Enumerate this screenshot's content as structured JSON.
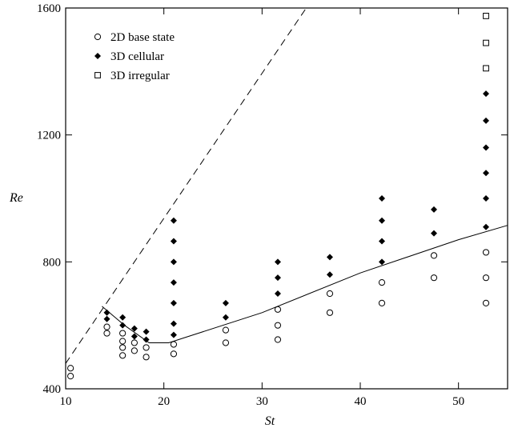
{
  "chart_data": {
    "type": "scatter",
    "xlabel": "St",
    "ylabel": "Re",
    "xlim": [
      10,
      55
    ],
    "ylim": [
      400,
      1600
    ],
    "xticks": [
      10,
      20,
      30,
      40,
      50
    ],
    "yticks": [
      400,
      800,
      1200,
      1600
    ],
    "grid": false,
    "legend_position": "top-left",
    "series": [
      {
        "name": "2D base state",
        "marker": "open-circle",
        "color": "#000000",
        "points": [
          [
            10.5,
            440
          ],
          [
            10.5,
            465
          ],
          [
            14.2,
            575
          ],
          [
            14.2,
            595
          ],
          [
            15.8,
            505
          ],
          [
            15.8,
            530
          ],
          [
            15.8,
            550
          ],
          [
            15.8,
            575
          ],
          [
            17.0,
            520
          ],
          [
            17.0,
            545
          ],
          [
            18.2,
            500
          ],
          [
            18.2,
            530
          ],
          [
            21.0,
            510
          ],
          [
            21.0,
            540
          ],
          [
            26.3,
            545
          ],
          [
            26.3,
            585
          ],
          [
            31.6,
            555
          ],
          [
            31.6,
            600
          ],
          [
            31.6,
            650
          ],
          [
            36.9,
            640
          ],
          [
            36.9,
            700
          ],
          [
            42.2,
            670
          ],
          [
            42.2,
            735
          ],
          [
            47.5,
            750
          ],
          [
            47.5,
            820
          ],
          [
            52.8,
            670
          ],
          [
            52.8,
            750
          ],
          [
            52.8,
            830
          ]
        ]
      },
      {
        "name": "3D cellular",
        "marker": "filled-diamond",
        "color": "#000000",
        "points": [
          [
            14.2,
            640
          ],
          [
            14.2,
            620
          ],
          [
            15.8,
            625
          ],
          [
            15.8,
            600
          ],
          [
            17.0,
            590
          ],
          [
            17.0,
            565
          ],
          [
            18.2,
            580
          ],
          [
            18.2,
            555
          ],
          [
            21.0,
            570
          ],
          [
            21.0,
            605
          ],
          [
            21.0,
            670
          ],
          [
            21.0,
            735
          ],
          [
            21.0,
            800
          ],
          [
            21.0,
            865
          ],
          [
            21.0,
            930
          ],
          [
            26.3,
            625
          ],
          [
            26.3,
            670
          ],
          [
            31.6,
            700
          ],
          [
            31.6,
            750
          ],
          [
            31.6,
            800
          ],
          [
            36.9,
            760
          ],
          [
            36.9,
            815
          ],
          [
            42.2,
            800
          ],
          [
            42.2,
            865
          ],
          [
            42.2,
            930
          ],
          [
            42.2,
            1000
          ],
          [
            47.5,
            890
          ],
          [
            47.5,
            965
          ],
          [
            52.8,
            910
          ],
          [
            52.8,
            1000
          ],
          [
            52.8,
            1080
          ],
          [
            52.8,
            1160
          ],
          [
            52.8,
            1245
          ],
          [
            52.8,
            1330
          ]
        ]
      },
      {
        "name": "3D irregular",
        "marker": "open-square",
        "color": "#000000",
        "points": [
          [
            52.8,
            1410
          ],
          [
            52.8,
            1490
          ],
          [
            52.8,
            1575
          ]
        ]
      }
    ],
    "lines": [
      {
        "style": "solid",
        "points": [
          [
            13.7,
            660
          ],
          [
            16.0,
            600
          ],
          [
            18.5,
            545
          ],
          [
            20.5,
            545
          ],
          [
            22.0,
            560
          ],
          [
            30.0,
            640
          ],
          [
            40.0,
            765
          ],
          [
            50.0,
            870
          ],
          [
            55.0,
            915
          ]
        ]
      },
      {
        "style": "dashed",
        "points": [
          [
            10.0,
            480
          ],
          [
            34.5,
            1600
          ]
        ]
      }
    ]
  }
}
